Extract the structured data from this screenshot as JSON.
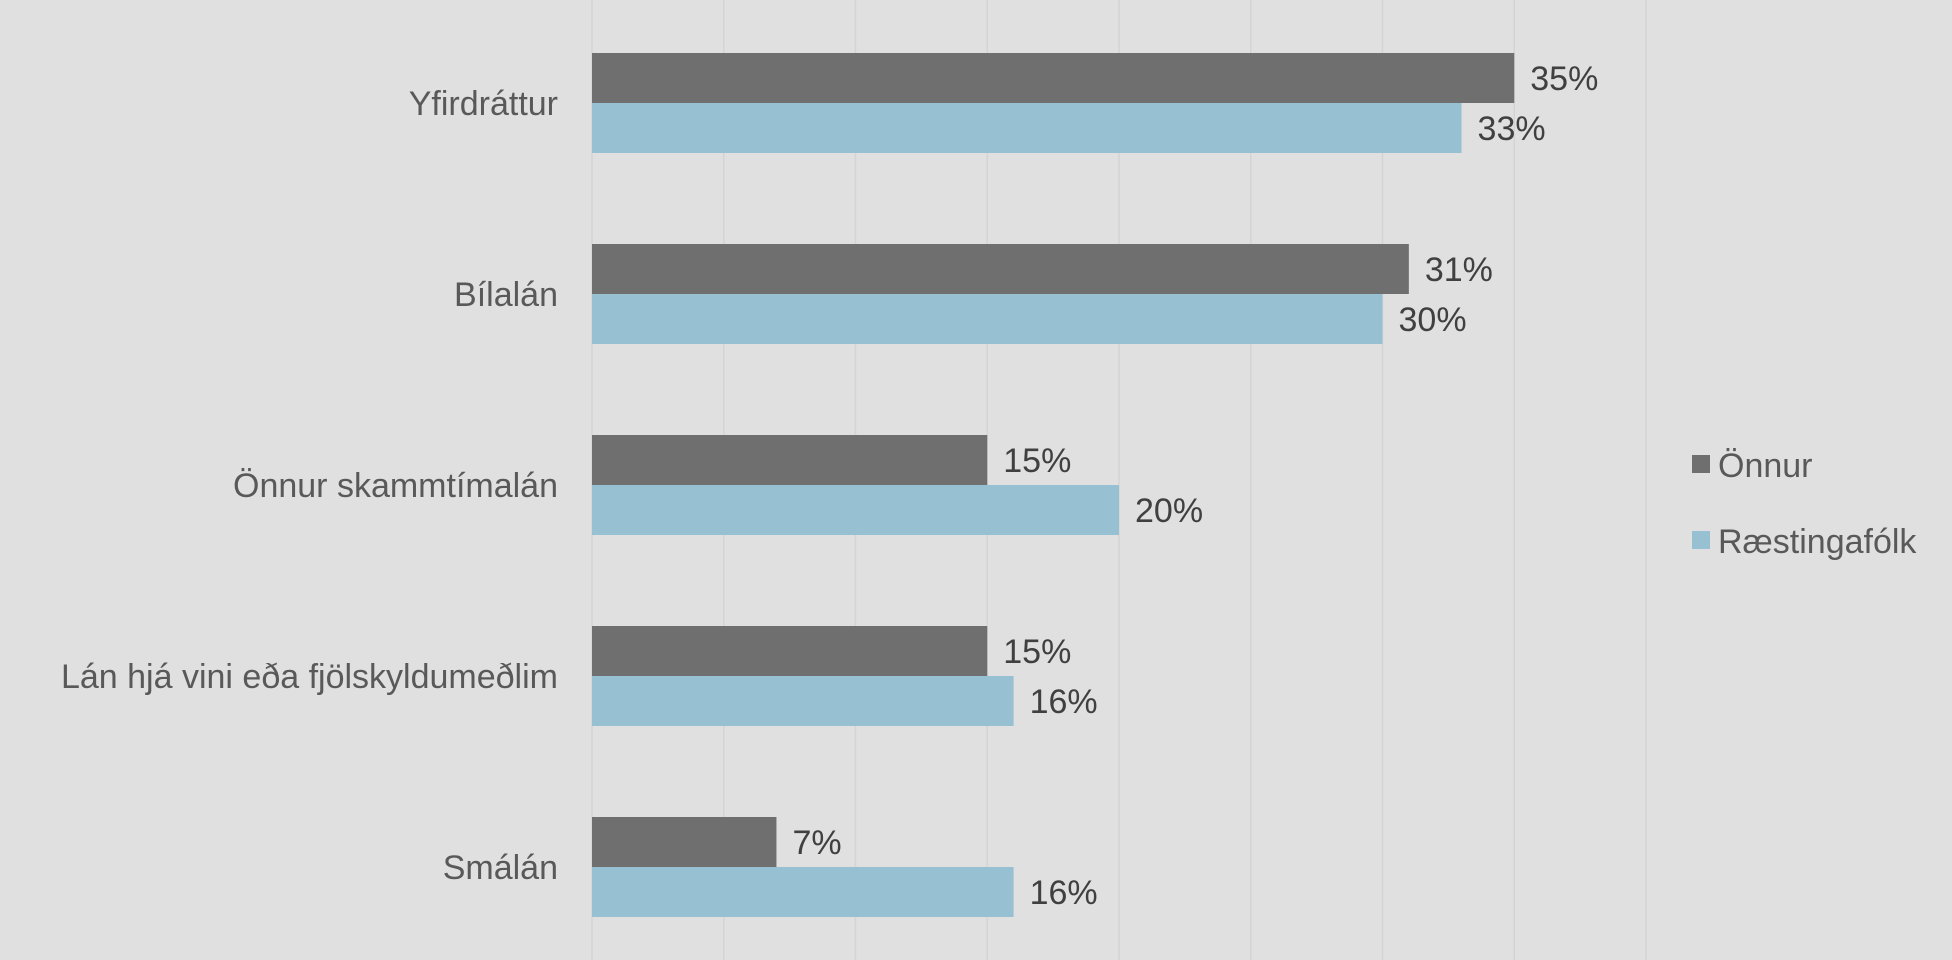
{
  "chart_data": {
    "type": "bar",
    "orientation": "horizontal",
    "categories": [
      "Yfirdráttur",
      "Bílalán",
      "Önnur skammtímalán",
      "Lán hjá vini eða fjölskyldumeðlim",
      "Smálán"
    ],
    "series": [
      {
        "name": "Önnur",
        "values": [
          35,
          31,
          15,
          15,
          7
        ],
        "labels": [
          "35%",
          "31%",
          "15%",
          "15%",
          "7%"
        ],
        "color": "#6f6f6f"
      },
      {
        "name": "Ræstingafólk",
        "values": [
          33,
          30,
          20,
          16,
          16
        ],
        "labels": [
          "33%",
          "30%",
          "20%",
          "16%",
          "16%"
        ],
        "color": "#98c0d3"
      }
    ],
    "xlim": [
      0,
      40
    ],
    "grid": true,
    "gridline_color": "#d4d4d4",
    "legend_placement": "right",
    "background": "#e0e0e0"
  }
}
